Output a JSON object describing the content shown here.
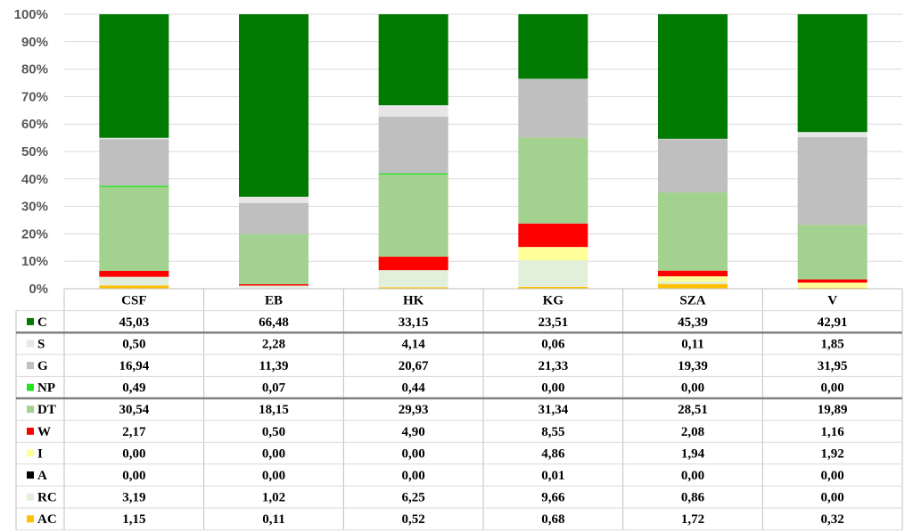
{
  "chart_data": {
    "type": "bar",
    "stacked": true,
    "normalized": true,
    "title": "",
    "xlabel": "",
    "ylabel": "",
    "ylim": [
      0,
      100
    ],
    "yticks": [
      "0%",
      "10%",
      "20%",
      "30%",
      "40%",
      "50%",
      "60%",
      "70%",
      "80%",
      "90%",
      "100%"
    ],
    "categories": [
      "CSF",
      "EB",
      "HK",
      "KG",
      "SZA",
      "V"
    ],
    "series": [
      {
        "name": "C",
        "color": "#007A00",
        "values": [
          "45,03",
          "66,48",
          "33,15",
          "23,51",
          "45,39",
          "42,91"
        ]
      },
      {
        "name": "S",
        "color": "#E6E6E6",
        "values": [
          "0,50",
          "2,28",
          "4,14",
          "0,06",
          "0,11",
          "1,85"
        ]
      },
      {
        "name": "G",
        "color": "#BFBFBF",
        "values": [
          "16,94",
          "11,39",
          "20,67",
          "21,33",
          "19,39",
          "31,95"
        ]
      },
      {
        "name": "NP",
        "color": "#22E322",
        "values": [
          "0,49",
          "0,07",
          "0,44",
          "0,00",
          "0,00",
          "0,00"
        ]
      },
      {
        "name": "DT",
        "color": "#A3D18F",
        "values": [
          "30,54",
          "18,15",
          "29,93",
          "31,34",
          "28,51",
          "19,89"
        ]
      },
      {
        "name": "W",
        "color": "#FF0000",
        "values": [
          "2,17",
          "0,50",
          "4,90",
          "8,55",
          "2,08",
          "1,16"
        ]
      },
      {
        "name": "I",
        "color": "#FFFF99",
        "values": [
          "0,00",
          "0,00",
          "0,00",
          "4,86",
          "1,94",
          "1,92"
        ]
      },
      {
        "name": "A",
        "color": "#000000",
        "values": [
          "0,00",
          "0,00",
          "0,00",
          "0,01",
          "0,00",
          "0,00"
        ]
      },
      {
        "name": "RC",
        "color": "#E2EFDA",
        "values": [
          "3,19",
          "1,02",
          "6,25",
          "9,66",
          "0,86",
          "0,00"
        ]
      },
      {
        "name": "AC",
        "color": "#FFC000",
        "values": [
          "1,15",
          "0,11",
          "0,52",
          "0,68",
          "1,72",
          "0,32"
        ]
      }
    ]
  }
}
